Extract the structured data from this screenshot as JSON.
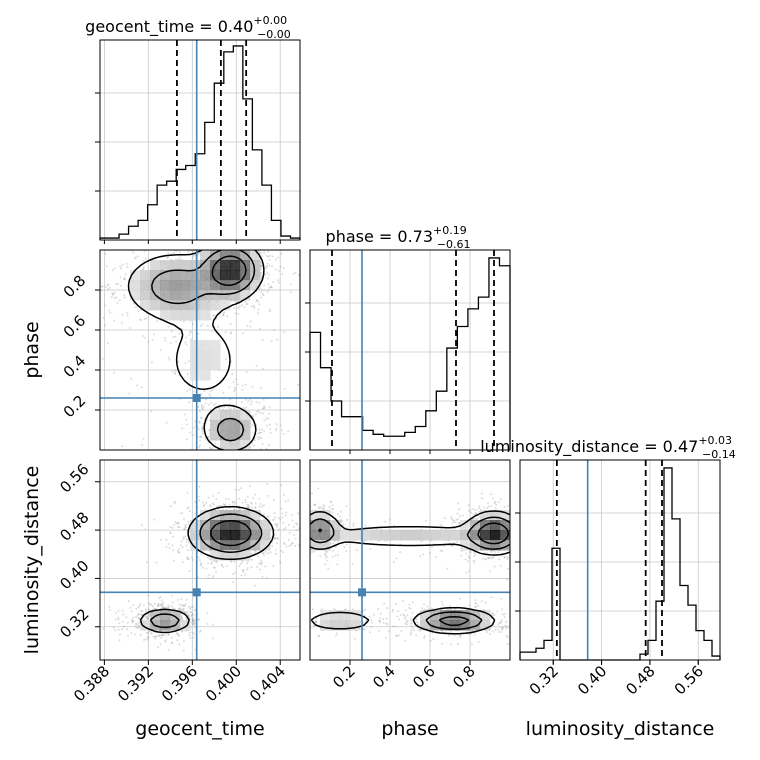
{
  "chart_data": {
    "type": "corner",
    "parameters": [
      "geocent_time",
      "phase",
      "luminosity_distance"
    ],
    "truth": {
      "geocent_time": 0.3964,
      "phase": 0.26,
      "luminosity_distance": 0.377
    },
    "marginals": [
      {
        "param": "geocent_time",
        "title": {
          "prefix": "geocent_time = ",
          "value": "0.40",
          "sup": "+0.00",
          "sub": "−0.00"
        },
        "range": [
          0.3876,
          0.4058
        ],
        "quantiles": [
          0.3946,
          0.3986,
          0.4009
        ],
        "hist": [
          0.01,
          0.01,
          0.03,
          0.07,
          0.1,
          0.18,
          0.28,
          0.3,
          0.36,
          0.38,
          0.44,
          0.6,
          0.8,
          0.96,
          0.99,
          0.72,
          0.46,
          0.28,
          0.1,
          0.02,
          0.01
        ]
      },
      {
        "param": "phase",
        "title": {
          "prefix": "phase = ",
          "value": "0.73",
          "sup": "+0.19",
          "sub": "−0.61"
        },
        "range": [
          0.0,
          1.0
        ],
        "quantiles": [
          0.11,
          0.73,
          0.92
        ],
        "hist": [
          0.6,
          0.42,
          0.25,
          0.17,
          0.17,
          0.1,
          0.08,
          0.07,
          0.07,
          0.09,
          0.12,
          0.2,
          0.3,
          0.52,
          0.63,
          0.72,
          0.78,
          0.98,
          0.94
        ]
      },
      {
        "param": "luminosity_distance",
        "title": {
          "prefix": "luminosity_distance = ",
          "value": "0.47",
          "sup": "+0.03",
          "sub": "−0.14"
        },
        "range": [
          0.265,
          0.596
        ],
        "quantiles": [
          0.326,
          0.473,
          0.5
        ],
        "hist": [
          0.04,
          0.04,
          0.06,
          0.1,
          0.57,
          0.0,
          0.0,
          0.0,
          0.0,
          0.0,
          0.0,
          0.0,
          0.0,
          0.0,
          0.0,
          0.03,
          0.1,
          0.3,
          0.98,
          0.72,
          0.38,
          0.28,
          0.15,
          0.1,
          0.02
        ]
      }
    ],
    "joint_panels": [
      {
        "x": "geocent_time",
        "y": "phase"
      },
      {
        "x": "geocent_time",
        "y": "luminosity_distance"
      },
      {
        "x": "phase",
        "y": "luminosity_distance"
      }
    ],
    "axis_ticks": {
      "geocent_time": [
        "0.388",
        "0.392",
        "0.396",
        "0.400",
        "0.404"
      ],
      "phase_x": [
        "0.2",
        "0.4",
        "0.6",
        "0.8"
      ],
      "phase_y": [
        "0.2",
        "0.4",
        "0.6",
        "0.8"
      ],
      "luminosity_distance": [
        "0.32",
        "0.40",
        "0.48",
        "0.56"
      ]
    },
    "xlabels": [
      "geocent_time",
      "phase",
      "luminosity_distance"
    ],
    "ylabels": [
      "phase",
      "luminosity_distance"
    ],
    "grid": true,
    "colors": {
      "truth": "#4682b4",
      "hist": "#000000",
      "samples": "#9a9a9a",
      "grid": "#c8c8c8"
    }
  }
}
